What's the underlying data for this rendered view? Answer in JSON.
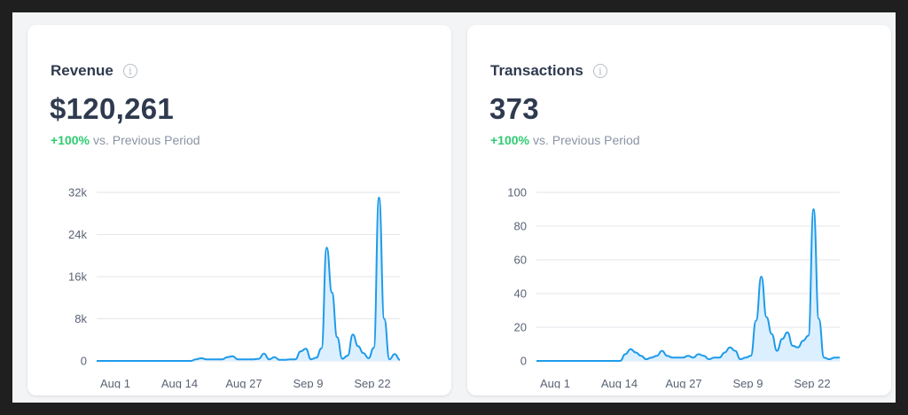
{
  "cards": [
    {
      "title": "Revenue",
      "value": "$120,261",
      "delta_pct": "+100%",
      "delta_text": "vs. Previous Period",
      "icon": "info-icon"
    },
    {
      "title": "Transactions",
      "value": "373",
      "delta_pct": "+100%",
      "delta_text": "vs. Previous Period",
      "icon": "info-icon"
    }
  ],
  "colors": {
    "line": "#1e9be9",
    "area": "#dcefff",
    "positive": "#2ecc71",
    "grid": "#e3e6eb"
  },
  "chart_data": [
    {
      "type": "area",
      "x_tick_labels": [
        "Aug 1",
        "Aug 14",
        "Aug 27",
        "Sep 9",
        "Sep 22"
      ],
      "y_tick_labels": [
        "32k",
        "24k",
        "16k",
        "8k",
        "0"
      ],
      "ylim": [
        0,
        32000
      ],
      "grid": true,
      "series": [
        {
          "values": [
            0,
            0,
            0,
            0,
            0,
            0,
            0,
            0,
            0,
            0,
            0,
            0,
            0,
            0,
            0,
            0,
            0,
            0,
            0,
            300,
            500,
            300,
            300,
            300,
            300,
            700,
            900,
            300,
            300,
            300,
            300,
            400,
            1400,
            300,
            700,
            200,
            200,
            300,
            300,
            1800,
            2300,
            300,
            600,
            2400,
            21500,
            13000,
            4500,
            400,
            1000,
            5000,
            2800,
            1500,
            500,
            2500,
            31000,
            8000,
            300,
            1300,
            200
          ]
        }
      ]
    },
    {
      "type": "area",
      "x_tick_labels": [
        "Aug 1",
        "Aug 14",
        "Aug 27",
        "Sep 9",
        "Sep 22"
      ],
      "y_tick_labels": [
        "100",
        "80",
        "60",
        "40",
        "20",
        "0"
      ],
      "ylim": [
        0,
        100
      ],
      "grid": true,
      "series": [
        {
          "values": [
            0,
            0,
            0,
            0,
            0,
            0,
            0,
            0,
            0,
            0,
            0,
            0,
            0,
            0,
            0,
            0,
            0,
            4,
            7,
            5,
            3,
            1,
            2,
            3,
            6,
            3,
            2,
            2,
            2,
            3,
            2,
            4,
            3,
            1,
            2,
            2,
            5,
            8,
            6,
            1,
            2,
            3,
            24,
            50,
            26,
            16,
            6,
            13,
            17,
            9,
            8,
            12,
            15,
            90,
            25,
            2,
            1,
            2,
            2
          ]
        }
      ]
    }
  ]
}
